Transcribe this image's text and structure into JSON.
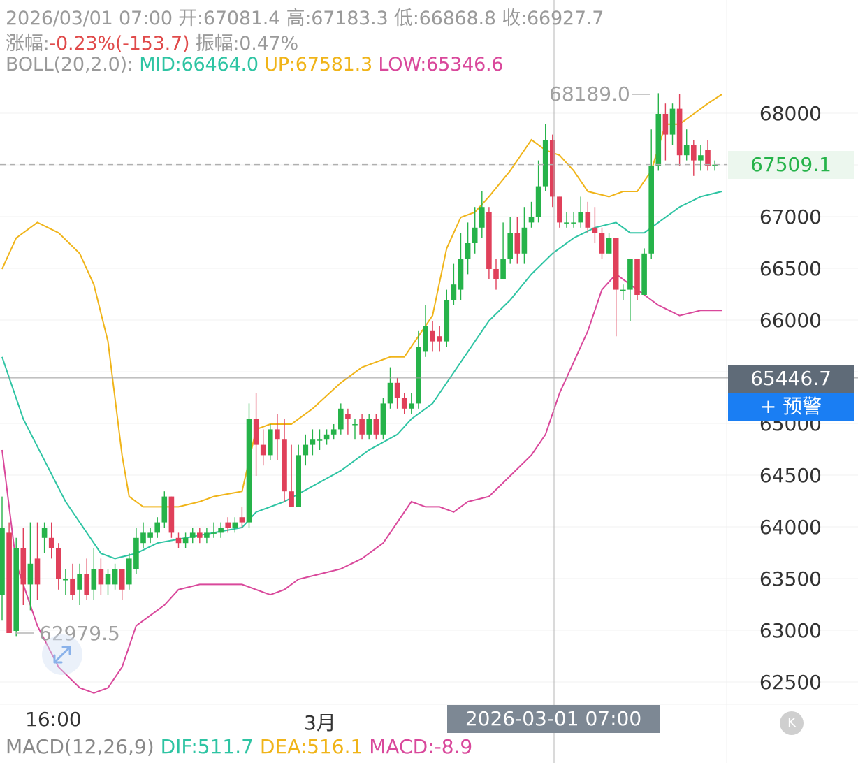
{
  "header": {
    "line1": {
      "date": "2026/03/01 07:00",
      "open_label": "开:",
      "open": "67081.4",
      "high_label": "高:",
      "high": "67183.3",
      "low_label": "低:",
      "low": "66868.8",
      "close_label": "收:",
      "close": "66927.7"
    },
    "line2": {
      "change_label": "涨幅:",
      "change": "-0.23%(-153.7)",
      "amp_label": "振幅:",
      "amp": "0.47%"
    },
    "line3": {
      "boll_label": "BOLL(20,2.0):",
      "mid": "MID:66464.0",
      "up": "UP:67581.3",
      "low": "LOW:65346.6"
    }
  },
  "colors": {
    "up": "#26b34a",
    "down": "#e0405a",
    "mid": "#2ec4a3",
    "upper": "#f0b419",
    "lower": "#d9489b",
    "neg_text": "#e04a4a",
    "last_price": "#26b34a"
  },
  "y_axis": {
    "labels": [
      "68000",
      "67000",
      "66500",
      "66000",
      "65000",
      "64500",
      "64000",
      "63500",
      "63000",
      "62500"
    ]
  },
  "last_price": "67509.1",
  "crosshair_price": "65446.7",
  "alarm_button": "+ 预警",
  "x_axis": {
    "labels": [
      "16:00",
      "3月"
    ]
  },
  "crosshair_time": "2026-03-01 07:00",
  "annotations": {
    "max": "68189.0",
    "min": "62979.5"
  },
  "k_button": "K",
  "macd": {
    "label": "MACD(12,26,9)",
    "dif": "DIF:511.7",
    "dea": "DEA:516.1",
    "macd": "MACD:-8.9"
  },
  "chart_data": {
    "type": "candlestick",
    "y_range": [
      62300,
      68450
    ],
    "candles": [
      [
        63350,
        64000,
        63100,
        64300
      ],
      [
        63950,
        62980,
        62979.5,
        64050
      ],
      [
        63000,
        63800,
        62950,
        63900
      ],
      [
        63800,
        63450,
        63250,
        64000
      ],
      [
        63450,
        63650,
        63200,
        64050
      ],
      [
        63700,
        63450,
        63300,
        64050
      ],
      [
        63900,
        64000,
        63750,
        64050
      ],
      [
        63900,
        63800,
        63700,
        64050
      ],
      [
        63800,
        63500,
        63400,
        63850
      ],
      [
        63500,
        63500,
        63350,
        63600
      ],
      [
        63500,
        63350,
        63300,
        63650
      ],
      [
        63400,
        63550,
        63250,
        63650
      ],
      [
        63550,
        63350,
        63300,
        63700
      ],
      [
        63400,
        63600,
        63300,
        63800
      ],
      [
        63600,
        63450,
        63350,
        63700
      ],
      [
        63450,
        63550,
        63350,
        63600
      ],
      [
        63450,
        63600,
        63400,
        63650
      ],
      [
        63600,
        63400,
        63300,
        63600
      ],
      [
        63450,
        63700,
        63400,
        63750
      ],
      [
        63600,
        63900,
        63550,
        64000
      ],
      [
        63850,
        63950,
        63800,
        64050
      ],
      [
        63900,
        63950,
        63850,
        64000
      ],
      [
        63950,
        64050,
        63900,
        64100
      ],
      [
        64050,
        64300,
        64000,
        64350
      ],
      [
        64300,
        63950,
        63900,
        64300
      ],
      [
        63900,
        63850,
        63800,
        63950
      ],
      [
        63850,
        63900,
        63800,
        63950
      ],
      [
        63900,
        63950,
        63850,
        64000
      ],
      [
        63950,
        63900,
        63850,
        64000
      ],
      [
        63900,
        63950,
        63850,
        64000
      ],
      [
        63950,
        63950,
        63900,
        64050
      ],
      [
        63950,
        64000,
        63900,
        64050
      ],
      [
        64050,
        64000,
        63950,
        64100
      ],
      [
        64000,
        64050,
        63950,
        64100
      ],
      [
        64100,
        64050,
        64000,
        64200
      ],
      [
        64050,
        65050,
        64000,
        65200
      ],
      [
        65050,
        64800,
        64500,
        65300
      ],
      [
        64800,
        64700,
        64600,
        64950
      ],
      [
        64700,
        64950,
        64650,
        65000
      ],
      [
        64950,
        64850,
        64650,
        65100
      ],
      [
        64850,
        64350,
        64250,
        65050
      ],
      [
        64350,
        64200,
        64200,
        64800
      ],
      [
        64200,
        64700,
        64200,
        64800
      ],
      [
        64700,
        64800,
        64600,
        64900
      ],
      [
        64800,
        64850,
        64700,
        64950
      ],
      [
        64850,
        64850,
        64750,
        64950
      ],
      [
        64850,
        64900,
        64800,
        64950
      ],
      [
        64900,
        64950,
        64850,
        65000
      ],
      [
        64950,
        65150,
        64900,
        65200
      ],
      [
        65100,
        65050,
        64900,
        65150
      ],
      [
        65000,
        65000,
        64850,
        65050
      ],
      [
        65050,
        64900,
        64850,
        65100
      ],
      [
        64900,
        65050,
        64850,
        65100
      ],
      [
        65050,
        64900,
        64850,
        65100
      ],
      [
        64900,
        65200,
        64850,
        65250
      ],
      [
        65200,
        65400,
        65150,
        65550
      ],
      [
        65400,
        65250,
        65150,
        65450
      ],
      [
        65250,
        65150,
        65100,
        65300
      ],
      [
        65150,
        65200,
        65100,
        65300
      ],
      [
        65200,
        65750,
        65150,
        65900
      ],
      [
        65700,
        65950,
        65650,
        66150
      ],
      [
        65900,
        65800,
        65700,
        66000
      ],
      [
        65850,
        65800,
        65700,
        65950
      ],
      [
        65800,
        66200,
        65750,
        66300
      ],
      [
        66200,
        66350,
        66150,
        66550
      ],
      [
        66300,
        66600,
        66200,
        66850
      ],
      [
        66600,
        66750,
        66450,
        66950
      ],
      [
        66750,
        66900,
        66650,
        67100
      ],
      [
        66900,
        67100,
        66800,
        67250
      ],
      [
        67050,
        66500,
        66400,
        67100
      ],
      [
        66500,
        66400,
        66300,
        66600
      ],
      [
        66400,
        66600,
        66400,
        66950
      ],
      [
        66600,
        66850,
        66550,
        67000
      ],
      [
        66850,
        66650,
        66550,
        67000
      ],
      [
        66650,
        66900,
        66550,
        67100
      ],
      [
        66950,
        67000,
        66900,
        67150
      ],
      [
        67000,
        67300,
        66950,
        67550
      ],
      [
        67300,
        67750,
        67250,
        67900
      ],
      [
        67750,
        67200,
        67100,
        67800
      ],
      [
        67200,
        66950,
        66900,
        67200
      ],
      [
        66950,
        66950,
        66900,
        67050
      ],
      [
        66950,
        66950,
        66900,
        67050
      ],
      [
        66950,
        67050,
        66900,
        67200
      ],
      [
        67050,
        66900,
        66850,
        67150
      ],
      [
        66900,
        66850,
        66750,
        67100
      ],
      [
        66850,
        66650,
        66600,
        66900
      ],
      [
        66650,
        66800,
        66650,
        66850
      ],
      [
        66800,
        66300,
        65850,
        66800
      ],
      [
        66300,
        66300,
        66200,
        66350
      ],
      [
        66300,
        66600,
        66000,
        66600
      ],
      [
        66600,
        66250,
        66200,
        66600
      ],
      [
        66250,
        66650,
        66250,
        66700
      ],
      [
        66650,
        67500,
        66600,
        67850
      ],
      [
        67500,
        68000,
        67450,
        68200
      ],
      [
        68000,
        67800,
        67550,
        68100
      ],
      [
        67800,
        68050,
        67700,
        68100
      ],
      [
        68050,
        67600,
        67500,
        68189.0
      ],
      [
        67600,
        67700,
        67550,
        67850
      ],
      [
        67700,
        67550,
        67400,
        67750
      ],
      [
        67550,
        67600,
        67450,
        67700
      ],
      [
        67650,
        67500,
        67450,
        67750
      ],
      [
        67500,
        67509.1,
        67450,
        67550
      ]
    ],
    "boll_upper": [
      [
        0,
        66500
      ],
      [
        2,
        66800
      ],
      [
        5,
        66950
      ],
      [
        8,
        66850
      ],
      [
        11,
        66650
      ],
      [
        13,
        66350
      ],
      [
        15,
        65800
      ],
      [
        17,
        64700
      ],
      [
        18,
        64300
      ],
      [
        19,
        64250
      ],
      [
        20,
        64200
      ],
      [
        22,
        64200
      ],
      [
        25,
        64200
      ],
      [
        28,
        64250
      ],
      [
        30,
        64300
      ],
      [
        34,
        64350
      ],
      [
        36,
        64950
      ],
      [
        38,
        65000
      ],
      [
        41,
        65000
      ],
      [
        44,
        65150
      ],
      [
        48,
        65400
      ],
      [
        51,
        65550
      ],
      [
        53,
        65600
      ],
      [
        55,
        65650
      ],
      [
        57,
        65650
      ],
      [
        59,
        65850
      ],
      [
        61,
        66050
      ],
      [
        63,
        66700
      ],
      [
        65,
        67000
      ],
      [
        67,
        67050
      ],
      [
        69,
        67200
      ],
      [
        72,
        67450
      ],
      [
        75,
        67750
      ],
      [
        77,
        67650
      ],
      [
        79,
        67600
      ],
      [
        81,
        67450
      ],
      [
        83,
        67250
      ],
      [
        86,
        67200
      ],
      [
        88,
        67250
      ],
      [
        90,
        67250
      ],
      [
        92,
        67450
      ],
      [
        94,
        67900
      ],
      [
        96,
        67900
      ],
      [
        98,
        68000
      ],
      [
        100,
        68100
      ],
      [
        102,
        68189
      ]
    ],
    "boll_mid": [
      [
        0,
        65650
      ],
      [
        3,
        65050
      ],
      [
        6,
        64650
      ],
      [
        9,
        64250
      ],
      [
        12,
        63950
      ],
      [
        14,
        63750
      ],
      [
        16,
        63700
      ],
      [
        19,
        63750
      ],
      [
        22,
        63850
      ],
      [
        26,
        63900
      ],
      [
        30,
        63950
      ],
      [
        34,
        64000
      ],
      [
        36,
        64150
      ],
      [
        40,
        64250
      ],
      [
        44,
        64400
      ],
      [
        48,
        64550
      ],
      [
        52,
        64750
      ],
      [
        56,
        64900
      ],
      [
        58,
        65050
      ],
      [
        61,
        65200
      ],
      [
        63,
        65400
      ],
      [
        66,
        65700
      ],
      [
        69,
        66000
      ],
      [
        72,
        66200
      ],
      [
        75,
        66450
      ],
      [
        78,
        66650
      ],
      [
        81,
        66800
      ],
      [
        84,
        66900
      ],
      [
        87,
        66950
      ],
      [
        89,
        66850
      ],
      [
        91,
        66850
      ],
      [
        93,
        66950
      ],
      [
        96,
        67100
      ],
      [
        99,
        67200
      ],
      [
        102,
        67250
      ]
    ],
    "boll_lower": [
      [
        0,
        64750
      ],
      [
        2,
        63650
      ],
      [
        5,
        63050
      ],
      [
        8,
        62650
      ],
      [
        11,
        62450
      ],
      [
        13,
        62400
      ],
      [
        15,
        62450
      ],
      [
        17,
        62650
      ],
      [
        19,
        63050
      ],
      [
        21,
        63150
      ],
      [
        23,
        63250
      ],
      [
        25,
        63400
      ],
      [
        28,
        63450
      ],
      [
        31,
        63450
      ],
      [
        34,
        63450
      ],
      [
        36,
        63400
      ],
      [
        38,
        63350
      ],
      [
        40,
        63400
      ],
      [
        42,
        63500
      ],
      [
        45,
        63550
      ],
      [
        48,
        63600
      ],
      [
        51,
        63700
      ],
      [
        54,
        63850
      ],
      [
        56,
        64050
      ],
      [
        58,
        64250
      ],
      [
        60,
        64200
      ],
      [
        62,
        64200
      ],
      [
        64,
        64150
      ],
      [
        66,
        64250
      ],
      [
        69,
        64300
      ],
      [
        72,
        64500
      ],
      [
        75,
        64700
      ],
      [
        77,
        64900
      ],
      [
        79,
        65300
      ],
      [
        81,
        65600
      ],
      [
        83,
        65900
      ],
      [
        85,
        66300
      ],
      [
        87,
        66450
      ],
      [
        89,
        66350
      ],
      [
        91,
        66250
      ],
      [
        93,
        66150
      ],
      [
        96,
        66050
      ],
      [
        99,
        66100
      ],
      [
        102,
        66100
      ]
    ]
  }
}
